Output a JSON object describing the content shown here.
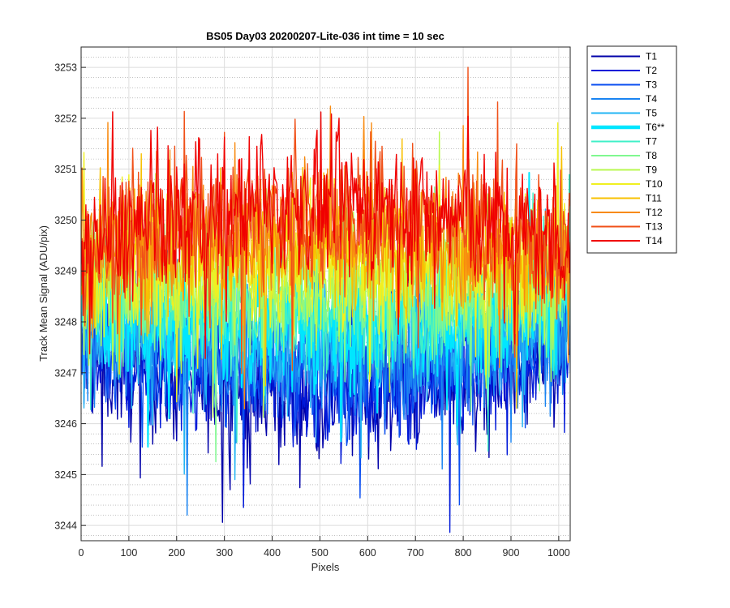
{
  "chart_data": {
    "type": "line",
    "title": "BS05 Day03 20200207-Lite-036 int time = 10 sec",
    "xlabel": "Pixels",
    "ylabel": "Track Mean Signal (ADU/pix)",
    "xlim": [
      0,
      1024
    ],
    "ylim": [
      3243.7,
      3253.4
    ],
    "xticks": [
      0,
      100,
      200,
      300,
      400,
      500,
      600,
      700,
      800,
      900,
      1000
    ],
    "yticks": [
      3244,
      3245,
      3246,
      3247,
      3248,
      3249,
      3250,
      3251,
      3252,
      3253
    ],
    "grid": true,
    "minor_grid": true,
    "legend_position": "outside-top-right",
    "series": [
      {
        "name": "T1",
        "color": "#0000a8",
        "center": [
          3247.3,
          3246.6,
          3247.3
        ],
        "spread": 1.05
      },
      {
        "name": "T2",
        "color": "#0018d8",
        "center": [
          3247.5,
          3246.8,
          3247.5
        ],
        "spread": 1.05
      },
      {
        "name": "T3",
        "color": "#0a4ef0",
        "center": [
          3247.7,
          3247.1,
          3247.7
        ],
        "spread": 1.0
      },
      {
        "name": "T4",
        "color": "#1a84f2",
        "center": [
          3247.9,
          3247.3,
          3247.9
        ],
        "spread": 1.0
      },
      {
        "name": "T5",
        "color": "#22b4f4",
        "center": [
          3248.1,
          3247.6,
          3248.1
        ],
        "spread": 1.0
      },
      {
        "name": "T6**",
        "color": "#00e6ff",
        "center": [
          3248.3,
          3247.9,
          3248.3
        ],
        "spread": 1.0,
        "highlight": true
      },
      {
        "name": "T7",
        "color": "#40f0c8",
        "center": [
          3248.5,
          3248.2,
          3248.5
        ],
        "spread": 1.0
      },
      {
        "name": "T8",
        "color": "#80f890",
        "center": [
          3248.7,
          3248.5,
          3248.7
        ],
        "spread": 1.0
      },
      {
        "name": "T9",
        "color": "#b8f850",
        "center": [
          3248.8,
          3248.9,
          3248.8
        ],
        "spread": 1.0
      },
      {
        "name": "T10",
        "color": "#f0f020",
        "center": [
          3249.0,
          3249.2,
          3249.0
        ],
        "spread": 1.05
      },
      {
        "name": "T11",
        "color": "#f8c000",
        "center": [
          3249.2,
          3249.5,
          3249.2
        ],
        "spread": 1.05
      },
      {
        "name": "T12",
        "color": "#f88a10",
        "center": [
          3249.3,
          3249.8,
          3249.3
        ],
        "spread": 1.05
      },
      {
        "name": "T13",
        "color": "#f05018",
        "center": [
          3249.4,
          3250.1,
          3249.4
        ],
        "spread": 1.1
      },
      {
        "name": "T14",
        "color": "#f00000",
        "center": [
          3249.5,
          3250.3,
          3249.5
        ],
        "spread": 1.1
      }
    ]
  }
}
